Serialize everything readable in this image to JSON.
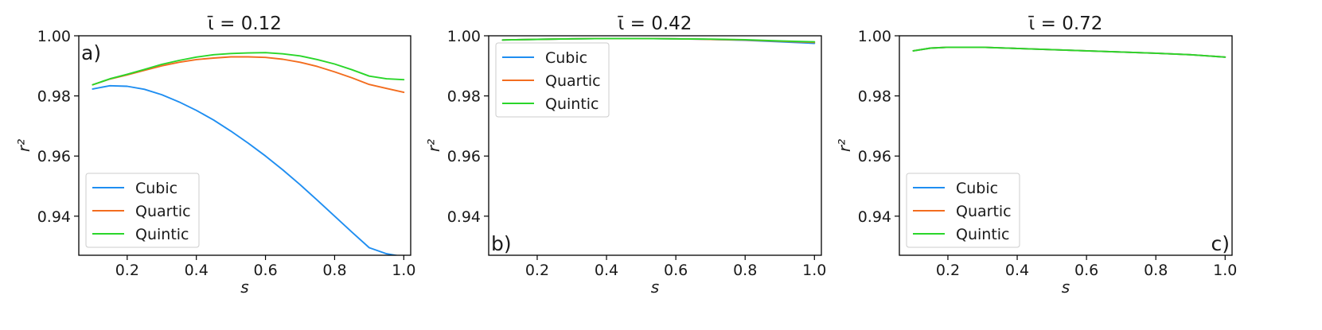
{
  "chart_data": [
    {
      "type": "line",
      "title": "ῑ = 0.12",
      "panel_label": "a)",
      "xlabel": "s",
      "ylabel": "r²",
      "xlim": [
        0.06,
        1.02
      ],
      "ylim": [
        0.927,
        1.0
      ],
      "xticks": [
        0.2,
        0.4,
        0.6,
        0.8,
        1.0
      ],
      "xtick_labels": [
        "0.2",
        "0.4",
        "0.6",
        "0.8",
        "1.0"
      ],
      "yticks": [
        0.94,
        0.96,
        0.98,
        1.0
      ],
      "ytick_labels": [
        "0.94",
        "0.96",
        "0.98",
        "1.00"
      ],
      "legend": "lower-left",
      "grid": false,
      "x": [
        0.1,
        0.15,
        0.2,
        0.25,
        0.3,
        0.35,
        0.4,
        0.45,
        0.5,
        0.55,
        0.6,
        0.65,
        0.7,
        0.75,
        0.8,
        0.85,
        0.9,
        0.95,
        1.0
      ],
      "series": [
        {
          "name": "Cubic",
          "color": "#1f8ef1",
          "values": [
            0.9823,
            0.9834,
            0.9832,
            0.9822,
            0.9804,
            0.978,
            0.9752,
            0.972,
            0.9683,
            0.9643,
            0.96,
            0.9554,
            0.9505,
            0.9453,
            0.94,
            0.9347,
            0.9295,
            0.9275,
            0.9265
          ]
        },
        {
          "name": "Quartic",
          "color": "#f36d1f",
          "values": [
            0.9837,
            0.9856,
            0.987,
            0.9885,
            0.99,
            0.9912,
            0.9921,
            0.9926,
            0.993,
            0.993,
            0.9928,
            0.9922,
            0.9912,
            0.9898,
            0.988,
            0.986,
            0.9838,
            0.9825,
            0.9812
          ]
        },
        {
          "name": "Quintic",
          "color": "#2ad62a",
          "values": [
            0.9837,
            0.9857,
            0.9872,
            0.9888,
            0.9905,
            0.9918,
            0.9929,
            0.9937,
            0.9941,
            0.9943,
            0.9944,
            0.994,
            0.9933,
            0.9921,
            0.9906,
            0.9887,
            0.9866,
            0.9857,
            0.9854
          ]
        }
      ]
    },
    {
      "type": "line",
      "title": "ῑ = 0.42",
      "panel_label": "b)",
      "xlabel": "s",
      "ylabel": "r²",
      "xlim": [
        0.06,
        1.02
      ],
      "ylim": [
        0.927,
        1.0
      ],
      "xticks": [
        0.2,
        0.4,
        0.6,
        0.8,
        1.0
      ],
      "xtick_labels": [
        "0.2",
        "0.4",
        "0.6",
        "0.8",
        "1.0"
      ],
      "yticks": [
        0.94,
        0.96,
        0.98,
        1.0
      ],
      "ytick_labels": [
        "0.94",
        "0.96",
        "0.98",
        "1.00"
      ],
      "legend": "upper-left",
      "grid": false,
      "x": [
        0.1,
        0.2,
        0.3,
        0.4,
        0.5,
        0.6,
        0.7,
        0.8,
        0.9,
        1.0
      ],
      "series": [
        {
          "name": "Cubic",
          "color": "#1f8ef1",
          "values": [
            0.9986,
            0.9988,
            0.999,
            0.9991,
            0.9991,
            0.999,
            0.9988,
            0.9985,
            0.998,
            0.9975
          ]
        },
        {
          "name": "Quartic",
          "color": "#f36d1f",
          "values": [
            0.9986,
            0.9988,
            0.999,
            0.9991,
            0.9991,
            0.999,
            0.9988,
            0.9986,
            0.9982,
            0.9978
          ]
        },
        {
          "name": "Quintic",
          "color": "#2ad62a",
          "values": [
            0.9986,
            0.9988,
            0.999,
            0.9991,
            0.9991,
            0.999,
            0.9989,
            0.9987,
            0.9983,
            0.998
          ]
        }
      ]
    },
    {
      "type": "line",
      "title": "ῑ = 0.72",
      "panel_label": "c)",
      "xlabel": "s",
      "ylabel": "r²",
      "xlim": [
        0.06,
        1.02
      ],
      "ylim": [
        0.927,
        1.0
      ],
      "xticks": [
        0.2,
        0.4,
        0.6,
        0.8,
        1.0
      ],
      "xtick_labels": [
        "0.2",
        "0.4",
        "0.6",
        "0.8",
        "1.0"
      ],
      "yticks": [
        0.94,
        0.96,
        0.98,
        1.0
      ],
      "ytick_labels": [
        "0.94",
        "0.96",
        "0.98",
        "1.00"
      ],
      "legend": "lower-left",
      "grid": false,
      "x": [
        0.1,
        0.15,
        0.2,
        0.3,
        0.4,
        0.5,
        0.6,
        0.7,
        0.8,
        0.9,
        1.0
      ],
      "series": [
        {
          "name": "Cubic",
          "color": "#1f8ef1",
          "values": [
            0.995,
            0.9959,
            0.9962,
            0.9962,
            0.9958,
            0.9954,
            0.995,
            0.9946,
            0.9942,
            0.9937,
            0.9929
          ]
        },
        {
          "name": "Quartic",
          "color": "#f36d1f",
          "values": [
            0.995,
            0.9959,
            0.9962,
            0.9962,
            0.9958,
            0.9954,
            0.995,
            0.9946,
            0.9942,
            0.9937,
            0.9929
          ]
        },
        {
          "name": "Quintic",
          "color": "#2ad62a",
          "values": [
            0.995,
            0.9959,
            0.9962,
            0.9962,
            0.9958,
            0.9954,
            0.995,
            0.9946,
            0.9942,
            0.9937,
            0.9929
          ]
        }
      ]
    }
  ]
}
